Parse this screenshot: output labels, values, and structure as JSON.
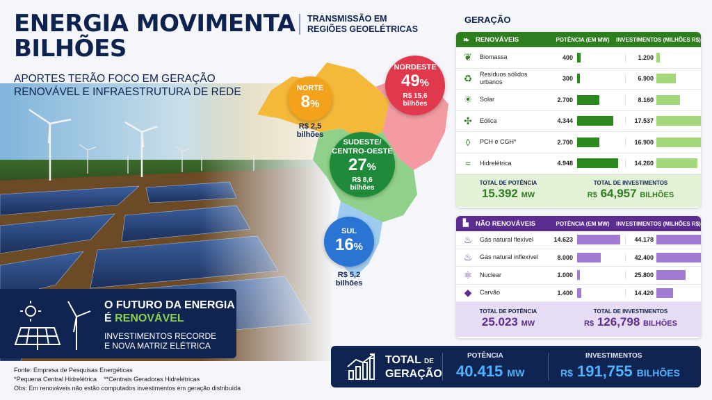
{
  "header": {
    "title_line1": "ENERGIA MOVIMENTA",
    "title_line2": "BILHÕES",
    "subtitle": "APORTES TERÃO FOCO EM GERAÇÃO RENOVÁVEL E INFRAESTRUTURA DE REDE"
  },
  "transmission": {
    "title": "TRANSMISSÃO EM REGIÕES GEOELÉTRICAS"
  },
  "future_box": {
    "line1": "O FUTURO DA ENERGIA",
    "line2_prefix": "É ",
    "line2_highlight": "RENOVÁVEL",
    "line3": "INVESTIMENTOS RECORDE",
    "line4": "E NOVA MATRIZ ELÉTRICA"
  },
  "footnotes": {
    "source": "Fonte: Empresa de Pesquisas Energéticas",
    "note1": "*Pequena Central Hidrelétrica",
    "note2": "**Centrais Geradoras Hidrelétricas",
    "obs": "Obs: Em renováveis não estão computados investimentos em geração distribuída"
  },
  "generation": {
    "title": "GERAÇÃO",
    "renewable": {
      "header": "RENOVÁVEIS",
      "col_power": "POTÊNCIA (EM MW)",
      "col_invest": "INVESTIMENTOS (MILHÕES R$)",
      "total_power_label": "TOTAL DE POTÊNCIA",
      "total_power_value": "15.392",
      "total_power_unit": "MW",
      "total_invest_label": "TOTAL DE INVESTIMENTOS",
      "total_invest_prefix": "R$",
      "total_invest_value": "64,957",
      "total_invest_unit": "BILHÕES"
    },
    "nonrenewable": {
      "header": "NÃO RENOVÁVEIS",
      "col_power": "POTÊNCIA (EM MW)",
      "col_invest": "INVESTIMENTOS (MILHÕES R$)",
      "total_power_label": "TOTAL DE POTÊNCIA",
      "total_power_value": "25.023",
      "total_power_unit": "MW",
      "total_invest_label": "TOTAL DE INVESTIMENTOS",
      "total_invest_prefix": "R$",
      "total_invest_value": "126,798",
      "total_invest_unit": "BILHÕES"
    },
    "grand_total": {
      "label_line1": "TOTAL",
      "label_de": "DE",
      "label_line2": "GERAÇÃO",
      "power_label": "POTÊNCIA",
      "power_value": "40.415",
      "power_unit": "MW",
      "invest_label": "INVESTIMENTOS",
      "invest_prefix": "R$",
      "invest_value": "191,755",
      "invest_unit": "BILHÕES"
    }
  },
  "colors": {
    "navy": "#0f2450",
    "renewable_header": "#2e7d1f",
    "renewable_bar_power": "#2a8a1e",
    "renewable_bar_invest": "#a4d67a",
    "renewable_total_bg": "#e3f1d6",
    "renewable_total_text": "#2e7d1f",
    "nonrenewable_header": "#5b2d91",
    "nonrenewable_bar": "#a07ad4",
    "nonrenewable_total_bg": "#e6dcf3",
    "nonrenewable_total_text": "#5b2d91",
    "norte": "#f2a21b",
    "nordeste": "#e0394e",
    "sudeste": "#1f8a3a",
    "sul": "#2a74d4"
  },
  "chart_data": [
    {
      "type": "bar",
      "title": "RENOVÁVEIS",
      "categories": [
        "Biomassa",
        "Resíduos sólidos urbanos",
        "Solar",
        "Eólica",
        "PCH e CGH*",
        "Hidrelétrica"
      ],
      "icons": [
        "leaf-icon",
        "recycle-icon",
        "sun-icon",
        "wind-turbine-icon",
        "water-drop-icon",
        "waves-icon"
      ],
      "series": [
        {
          "name": "POTÊNCIA (EM MW)",
          "values": [
            400,
            300,
            2700,
            4344,
            2700,
            4948
          ],
          "labels": [
            "400",
            "300",
            "2.700",
            "4.344",
            "2.700",
            "4.948"
          ]
        },
        {
          "name": "INVESTIMENTOS (MILHÕES R$)",
          "values": [
            1200,
            6900,
            8160,
            17537,
            16900,
            14260
          ],
          "labels": [
            "1.200",
            "6.900",
            "8.160",
            "17.537",
            "16.900",
            "14.260"
          ]
        }
      ]
    },
    {
      "type": "bar",
      "title": "NÃO RENOVÁVEIS",
      "categories": [
        "Gás natural flexível",
        "Gás natural inflexível",
        "Nuclear",
        "Carvão"
      ],
      "icons": [
        "flame-icon",
        "flame-icon",
        "atom-icon",
        "coal-icon"
      ],
      "series": [
        {
          "name": "POTÊNCIA (EM MW)",
          "values": [
            14623,
            8000,
            1000,
            1400
          ],
          "labels": [
            "14.623",
            "8.000",
            "1.000",
            "1.400"
          ]
        },
        {
          "name": "INVESTIMENTOS (MILHÕES R$)",
          "values": [
            44178,
            42400,
            25800,
            14420
          ],
          "labels": [
            "44.178",
            "42.400",
            "25.800",
            "14.420"
          ]
        }
      ]
    },
    {
      "type": "table",
      "title": "TRANSMISSÃO EM REGIÕES GEOELÉTRICAS",
      "regions": [
        {
          "name": "NORTE",
          "percent": 8,
          "percent_label": "8",
          "value_line1": "R$ 2,5",
          "value_line2": "bilhões"
        },
        {
          "name": "NORDESTE",
          "percent": 49,
          "percent_label": "49",
          "value_line1": "R$ 15,6",
          "value_line2": "bilhões"
        },
        {
          "name_line1": "SUDESTE/",
          "name_line2": "CENTRO-OESTE",
          "percent": 27,
          "percent_label": "27",
          "value_line1": "R$ 8,6",
          "value_line2": "bilhões"
        },
        {
          "name": "SUL",
          "percent": 16,
          "percent_label": "16",
          "value_line1": "R$ 5,2",
          "value_line2": "bilhões"
        }
      ]
    }
  ]
}
